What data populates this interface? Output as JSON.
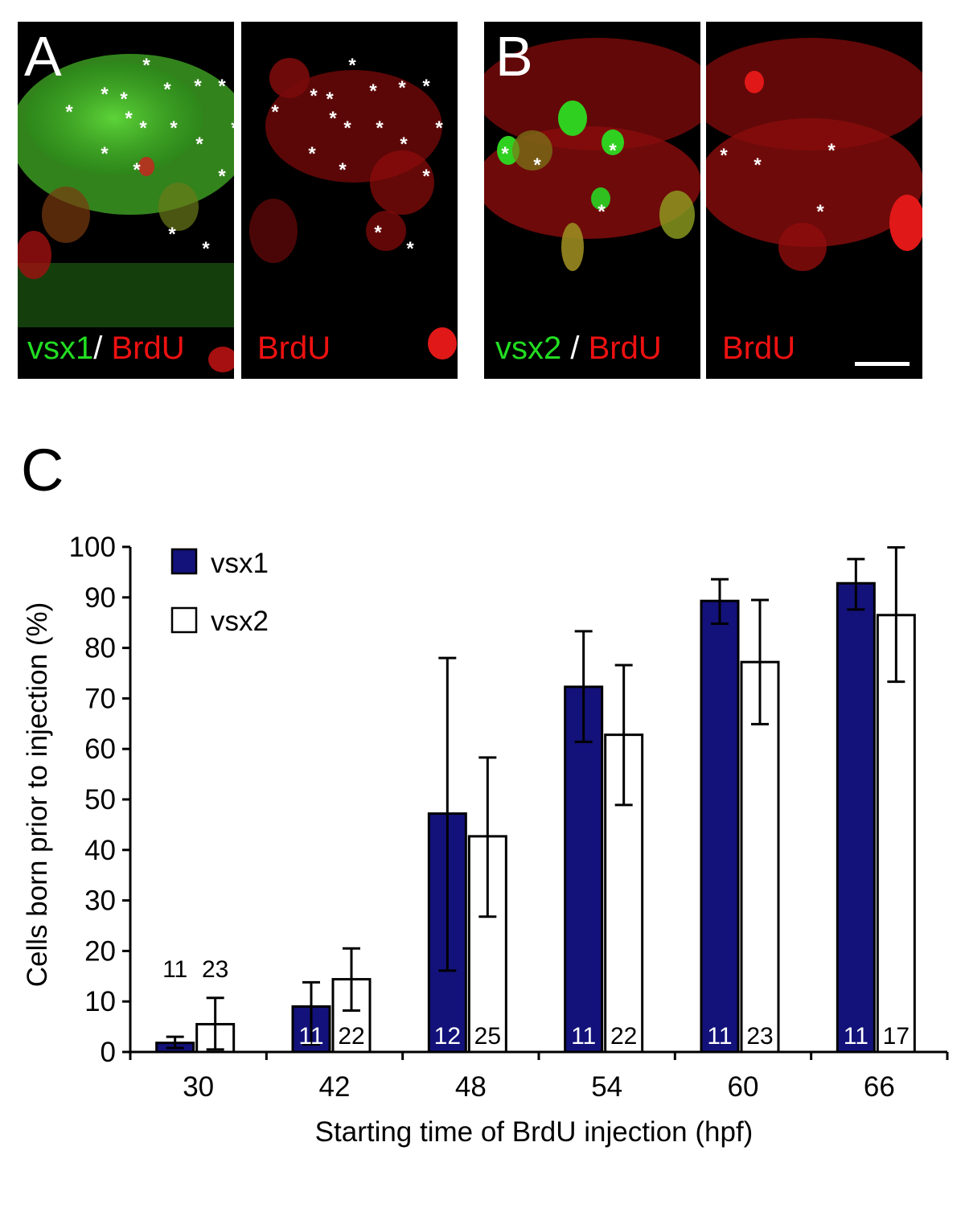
{
  "panels": {
    "A": {
      "letter": "A",
      "merge_green": "vsx1",
      "merge_sep": "/",
      "merge_red": "BrdU",
      "single_red": "BrdU"
    },
    "B": {
      "letter": "B",
      "merge_green": "vsx2",
      "merge_sep": "/",
      "merge_red": "BrdU",
      "single_red": "BrdU"
    },
    "C": {
      "letter": "C"
    }
  },
  "colors": {
    "vsx1_bar": "#13127a",
    "vsx2_bar": "#ffffff",
    "green_label": "#22dd22",
    "red_label": "#ee1111"
  },
  "chart_data": {
    "type": "bar",
    "xlabel": "Starting time of BrdU injection (hpf)",
    "ylabel": "Cells born prior to injection (%)",
    "ylim": [
      0,
      100
    ],
    "yticks": [
      0,
      10,
      20,
      30,
      40,
      50,
      60,
      70,
      80,
      90,
      100
    ],
    "categories": [
      "30",
      "42",
      "48",
      "54",
      "60",
      "66"
    ],
    "legend_position": "top-left",
    "series": [
      {
        "name": "vsx1",
        "values": [
          1.8,
          9.0,
          47.2,
          72.3,
          89.3,
          92.8
        ],
        "err_low": [
          0.8,
          1.5,
          16.1,
          61.4,
          84.8,
          87.6
        ],
        "err_high": [
          3.0,
          13.8,
          78.0,
          83.3,
          93.6,
          97.6
        ],
        "n": [
          "11",
          "11",
          "12",
          "11",
          "11",
          "11"
        ]
      },
      {
        "name": "vsx2",
        "values": [
          5.5,
          14.4,
          42.7,
          62.8,
          77.2,
          86.5
        ],
        "err_low": [
          0.5,
          8.2,
          26.8,
          48.9,
          64.9,
          73.3
        ],
        "err_high": [
          10.7,
          20.5,
          58.3,
          76.6,
          89.5,
          99.9
        ],
        "n": [
          "23",
          "22",
          "25",
          "22",
          "23",
          "17"
        ]
      }
    ]
  }
}
